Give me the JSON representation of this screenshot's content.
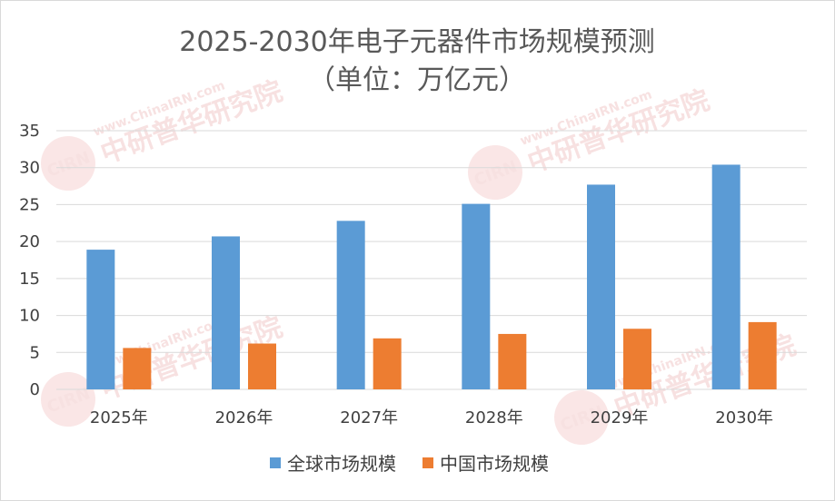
{
  "chart_data": {
    "type": "bar",
    "title": "2025-2030年电子元器件市场规模预测",
    "subtitle": "（单位：万亿元）",
    "categories": [
      "2025年",
      "2026年",
      "2027年",
      "2028年",
      "2029年",
      "2030年"
    ],
    "series": [
      {
        "name": "全球市场规模",
        "values": [
          18.9,
          20.7,
          22.8,
          25.1,
          27.7,
          30.4
        ],
        "color": "#5b9bd5"
      },
      {
        "name": "中国市场规模",
        "values": [
          5.6,
          6.2,
          6.9,
          7.5,
          8.2,
          9.1
        ],
        "color": "#ed7d31"
      }
    ],
    "ylim": [
      0,
      35
    ],
    "yticks": [
      0,
      5,
      10,
      15,
      20,
      25,
      30,
      35
    ],
    "grid": true,
    "legend_position": "bottom"
  },
  "watermark": {
    "text": "中研普华研究院",
    "url_text": "www.ChinaIRN.com",
    "logo_text": "CIRN"
  }
}
